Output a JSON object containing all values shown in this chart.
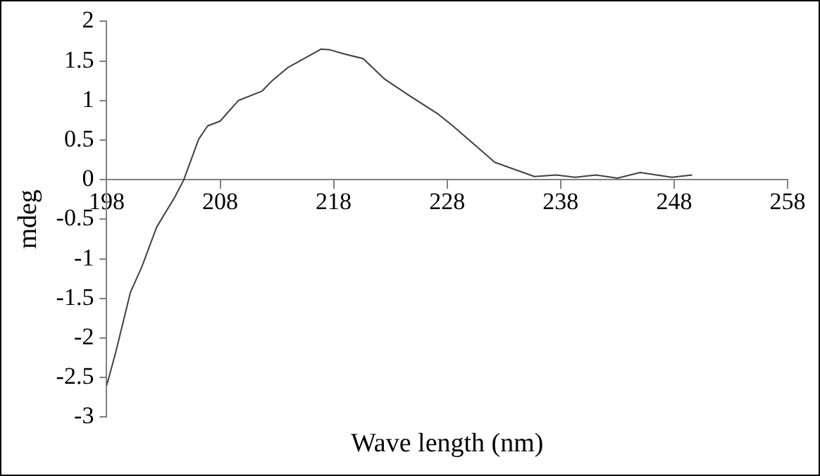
{
  "chart_data": {
    "type": "line",
    "xlabel": "Wave length (nm)",
    "ylabel": "mdeg",
    "xlim": [
      198,
      258
    ],
    "xticks": [
      198,
      208,
      218,
      228,
      238,
      248,
      258
    ],
    "ylim": [
      -3,
      2
    ],
    "yticks": [
      -3,
      -2.5,
      -2,
      -1.5,
      -1,
      -0.5,
      0,
      0.5,
      1,
      1.5,
      2
    ],
    "grid": false,
    "legend": false,
    "marker": "none",
    "line_style": "solid",
    "series": [
      {
        "color": "#404040",
        "x": [
          198,
          198.8,
          200.1,
          201.1,
          202.4,
          204,
          204.8,
          206.1,
          206.9,
          208,
          209.6,
          211.7,
          212.5,
          214,
          215.4,
          216.9,
          217.7,
          218.9,
          220.6,
          222.5,
          224.7,
          227.2,
          228.5,
          232.2,
          235.7,
          237.6,
          239.3,
          241.1,
          243,
          245,
          247.8,
          249.6
        ],
        "values": [
          -2.6,
          -2.18,
          -1.42,
          -1.1,
          -0.6,
          -0.22,
          0,
          0.51,
          0.68,
          0.74,
          1,
          1.12,
          1.24,
          1.42,
          1.53,
          1.65,
          1.64,
          1.59,
          1.53,
          1.27,
          1.06,
          0.83,
          0.68,
          0.22,
          0.04,
          0.06,
          0.03,
          0.06,
          0.02,
          0.09,
          0.03,
          0.06
        ]
      }
    ]
  }
}
